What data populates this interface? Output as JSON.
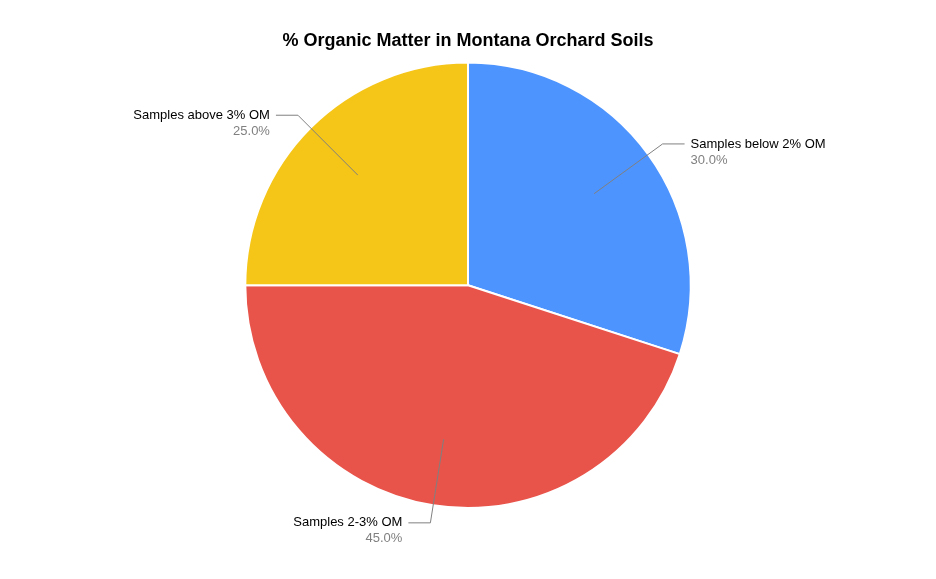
{
  "chart_data": {
    "type": "pie",
    "title": "% Organic Matter in Montana Orchard Soils",
    "categories": [
      "Samples below 2% OM",
      "Samples 2-3% OM",
      "Samples above 3% OM"
    ],
    "values": [
      30.0,
      45.0,
      25.0
    ],
    "value_labels": [
      "30.0%",
      "45.0%",
      "25.0%"
    ],
    "colors": [
      "#4d94ff",
      "#e8534a",
      "#f5c518"
    ],
    "data_labels": true
  }
}
